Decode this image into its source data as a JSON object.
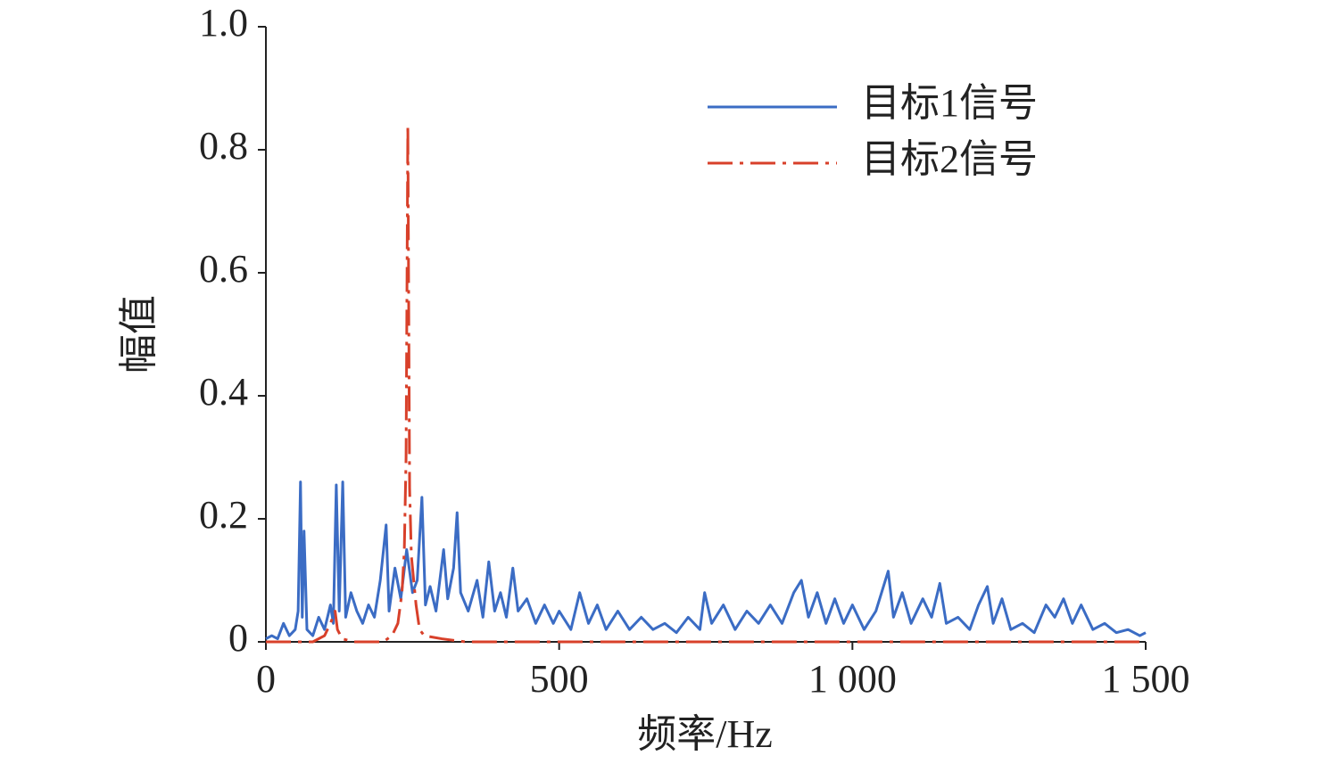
{
  "chart_data": {
    "type": "line",
    "xlabel": "频率/Hz",
    "ylabel": "幅值",
    "xlim": [
      0,
      1500
    ],
    "xticks": [
      0,
      500,
      {
        "value": 1000,
        "label": "1 000"
      },
      {
        "value": 1500,
        "label": "1 500"
      }
    ],
    "ylim": [
      0,
      1
    ],
    "yticks": [
      0,
      0.2,
      0.4,
      0.6,
      0.8,
      {
        "value": 1,
        "label": "1.0"
      }
    ],
    "legend": "upper right",
    "grid": false,
    "series": [
      {
        "name": "目标1信号",
        "color": "#3b6cc4",
        "linestyle": "solid",
        "x": [
          0,
          10,
          20,
          30,
          40,
          50,
          55,
          59,
          62,
          65,
          70,
          80,
          90,
          100,
          110,
          115,
          120,
          125,
          131,
          136,
          145,
          155,
          165,
          175,
          185,
          195,
          205,
          210,
          220,
          230,
          240,
          250,
          258,
          266,
          272,
          280,
          290,
          303,
          310,
          320,
          326,
          332,
          345,
          360,
          370,
          380,
          390,
          400,
          410,
          421,
          430,
          445,
          460,
          475,
          490,
          500,
          520,
          535,
          550,
          565,
          580,
          600,
          620,
          640,
          660,
          680,
          700,
          720,
          740,
          748,
          760,
          780,
          800,
          820,
          840,
          860,
          880,
          900,
          913,
          925,
          940,
          955,
          970,
          985,
          1000,
          1020,
          1040,
          1061,
          1070,
          1085,
          1100,
          1120,
          1135,
          1149,
          1160,
          1180,
          1200,
          1215,
          1230,
          1240,
          1255,
          1270,
          1290,
          1310,
          1330,
          1345,
          1360,
          1375,
          1390,
          1410,
          1430,
          1450,
          1470,
          1490,
          1500
        ],
        "values": [
          0.005,
          0.01,
          0.005,
          0.03,
          0.01,
          0.02,
          0.05,
          0.26,
          0.04,
          0.18,
          0.02,
          0.01,
          0.04,
          0.02,
          0.06,
          0.03,
          0.255,
          0.05,
          0.26,
          0.04,
          0.08,
          0.05,
          0.03,
          0.06,
          0.04,
          0.1,
          0.19,
          0.05,
          0.12,
          0.07,
          0.15,
          0.08,
          0.1,
          0.235,
          0.06,
          0.09,
          0.05,
          0.15,
          0.07,
          0.12,
          0.21,
          0.08,
          0.05,
          0.1,
          0.04,
          0.13,
          0.05,
          0.08,
          0.04,
          0.12,
          0.05,
          0.07,
          0.03,
          0.06,
          0.03,
          0.05,
          0.02,
          0.08,
          0.03,
          0.06,
          0.02,
          0.05,
          0.02,
          0.04,
          0.02,
          0.03,
          0.015,
          0.04,
          0.02,
          0.08,
          0.03,
          0.06,
          0.02,
          0.05,
          0.03,
          0.06,
          0.03,
          0.08,
          0.1,
          0.04,
          0.08,
          0.03,
          0.07,
          0.03,
          0.06,
          0.02,
          0.05,
          0.115,
          0.04,
          0.08,
          0.03,
          0.07,
          0.04,
          0.095,
          0.03,
          0.04,
          0.02,
          0.06,
          0.09,
          0.03,
          0.07,
          0.02,
          0.03,
          0.015,
          0.06,
          0.04,
          0.07,
          0.03,
          0.06,
          0.02,
          0.03,
          0.015,
          0.02,
          0.01,
          0.015
        ]
      },
      {
        "name": "目标2信号",
        "color": "#d8402a",
        "linestyle": "dashdot",
        "x": [
          0,
          80,
          100,
          110,
          118,
          122,
          130,
          150,
          200,
          215,
          225,
          232,
          236,
          239,
          242,
          245,
          248,
          252,
          256,
          262,
          270,
          300,
          340,
          400,
          600,
          1000,
          1500
        ],
        "values": [
          0,
          0,
          0.01,
          0.03,
          0.05,
          0.02,
          0.005,
          0,
          0,
          0.01,
          0.03,
          0.08,
          0.15,
          0.3,
          0.84,
          0.25,
          0.14,
          0.1,
          0.06,
          0.02,
          0.01,
          0.005,
          0,
          0,
          0,
          0,
          0
        ]
      }
    ]
  }
}
